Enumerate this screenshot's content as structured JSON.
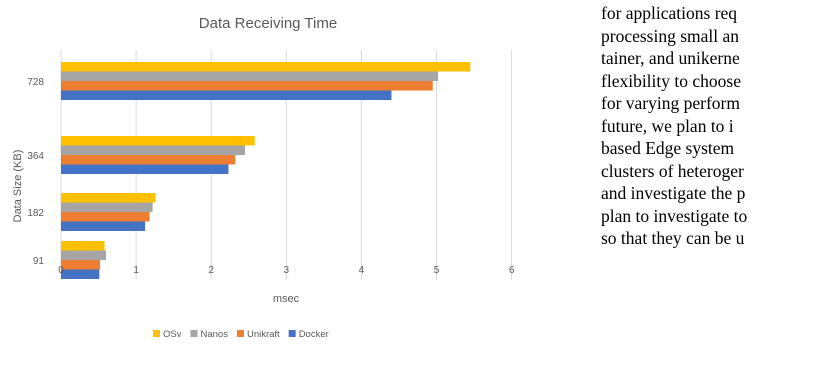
{
  "chart_data": {
    "type": "bar",
    "orientation": "horizontal",
    "title": "Data Receiving Time",
    "xlabel": "msec",
    "ylabel": "Data Size (KB)",
    "categories": [
      "91",
      "182",
      "364",
      "728"
    ],
    "xlim": [
      0,
      6
    ],
    "xticks": [
      "0",
      "1",
      "2",
      "3",
      "4",
      "5",
      "6"
    ],
    "grid": "vertical",
    "legend_position": "bottom",
    "series": [
      {
        "name": "OSv",
        "color": "#FFC000",
        "values": [
          0.58,
          1.26,
          2.58,
          5.45
        ]
      },
      {
        "name": "Nanos",
        "color": "#A5A5A5",
        "values": [
          0.6,
          1.22,
          2.45,
          5.02
        ]
      },
      {
        "name": "Unikraft",
        "color": "#ED7D31",
        "values": [
          0.52,
          1.18,
          2.32,
          4.95
        ]
      },
      {
        "name": "Docker",
        "color": "#4472C4",
        "values": [
          0.51,
          1.12,
          2.23,
          4.4
        ]
      }
    ]
  },
  "body_text": {
    "lines": [
      "for applications req",
      "processing small an",
      "tainer, and unikerne",
      "flexibility to choose",
      "for varying perform",
      "future, we plan to i",
      "based Edge system",
      "clusters of heteroger",
      "and investigate the p",
      "plan to investigate to",
      "so that they can be u"
    ]
  }
}
